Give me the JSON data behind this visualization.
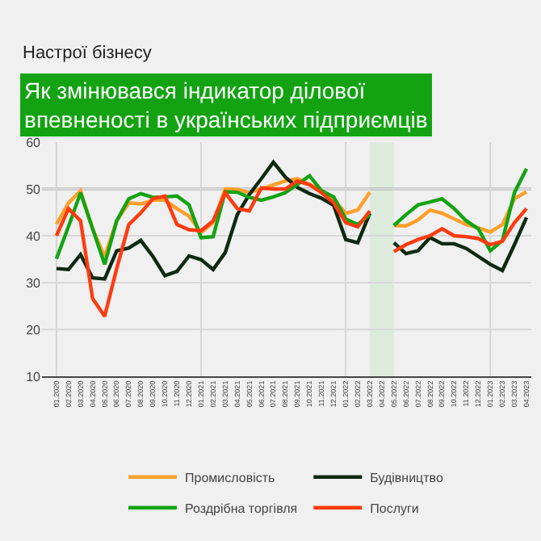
{
  "chart_data": {
    "type": "line",
    "title": "Як змінювався індикатор ділової впевненості в українських підприємців",
    "subtitle": "Настрої бізнесу",
    "categories": [
      "01.2020",
      "02.2020",
      "03.2020",
      "04.2020",
      "05.2020",
      "06.2020",
      "07.2020",
      "08.2020",
      "09.2020",
      "10.2020",
      "11.2020",
      "12.2020",
      "01.2021",
      "02.2021",
      "03.2021",
      "04.2021",
      "05.2021",
      "06.2021",
      "07.2021",
      "08.2021",
      "09.2021",
      "10.2021",
      "11.2021",
      "12.2021",
      "01.2022",
      "02.2022",
      "03.2022",
      "04.2022",
      "05.2022",
      "06.2022",
      "07.2022",
      "08.2022",
      "09.2022",
      "10.2022",
      "11.2022",
      "12.2022",
      "01.2023",
      "02.2023",
      "03.2023",
      "04.2023"
    ],
    "series": [
      {
        "name": "Промисловість",
        "color": "#ff9f2a",
        "values": [
          42.5,
          47,
          49.6,
          41.5,
          35.6,
          43.2,
          47,
          46.8,
          47.6,
          47.6,
          45.8,
          44.2,
          40.7,
          42.8,
          50,
          49.9,
          49.2,
          50,
          50.9,
          51.7,
          52.2,
          51,
          49.6,
          47.8,
          44.8,
          45.5,
          49.3,
          null,
          42.2,
          42.1,
          43.4,
          45.5,
          44.8,
          43.6,
          42.4,
          41.7,
          40.8,
          42.4,
          47.9,
          49.4
        ]
      },
      {
        "name": "Будівництво",
        "color": "#0d2a12",
        "values": [
          33,
          32.8,
          36,
          31,
          30.8,
          36.8,
          37.4,
          39,
          35.6,
          31.5,
          32.4,
          35.7,
          34.9,
          32.8,
          36.4,
          44.5,
          48.8,
          52.2,
          55.7,
          52.5,
          50.3,
          49,
          48,
          46.5,
          39.2,
          38.5,
          44.8,
          null,
          38.5,
          36.2,
          36.8,
          39.6,
          38.3,
          38.3,
          37.3,
          35.6,
          33.9,
          32.6,
          38.1,
          43.9
        ]
      },
      {
        "name": "Роздрібна торгівля",
        "color": "#13a312",
        "values": [
          35.1,
          42,
          49.2,
          41.5,
          33.9,
          43.2,
          47.9,
          49,
          48.2,
          48.3,
          48.5,
          46.6,
          39.6,
          39.8,
          49.4,
          49.3,
          48.2,
          47.6,
          48.3,
          49.2,
          51,
          52.8,
          49.6,
          48.3,
          43.6,
          42.4,
          44.5,
          null,
          42.2,
          44.5,
          46.6,
          47.2,
          47.9,
          45.8,
          43.2,
          41.5,
          36.8,
          39,
          49.2,
          54.3
        ]
      },
      {
        "name": "Послуги",
        "color": "#ff3b0f",
        "values": [
          40,
          45.8,
          43.2,
          26.6,
          22.8,
          33,
          42.4,
          44.9,
          47.9,
          48.5,
          42.4,
          41.3,
          41.1,
          43.2,
          49.2,
          45.8,
          45.3,
          50.2,
          50,
          50,
          51.7,
          50.9,
          49.2,
          47,
          42.8,
          41.9,
          45.3,
          null,
          36.6,
          38.1,
          39.2,
          40,
          41.5,
          40,
          39.8,
          39.4,
          38.1,
          38.8,
          42.8,
          45.8
        ]
      }
    ],
    "ylim": [
      10,
      60
    ],
    "yticks": [
      10,
      20,
      30,
      40,
      50,
      60
    ],
    "grid": "y",
    "legend": "bottom",
    "line_style": "solid",
    "marker": "none",
    "ref_lines": [
      {
        "axis": "y",
        "value": 50,
        "label": null,
        "color": "#555555"
      },
      {
        "axis": "x",
        "value": "01.2020",
        "label": null,
        "color": "#d6d6d6"
      },
      {
        "axis": "x",
        "value": "01.2021",
        "label": null,
        "color": "#d6d6d6"
      },
      {
        "axis": "x",
        "value": "01.2022",
        "label": null,
        "color": "#d6d6d6"
      },
      {
        "axis": "x",
        "value": "01.2023",
        "label": null,
        "color": "#d6d6d6"
      }
    ],
    "bands": [
      {
        "axis": "x",
        "from": "03.2022",
        "to": "05.2022",
        "label": null,
        "color": "#dcebdc"
      }
    ]
  }
}
